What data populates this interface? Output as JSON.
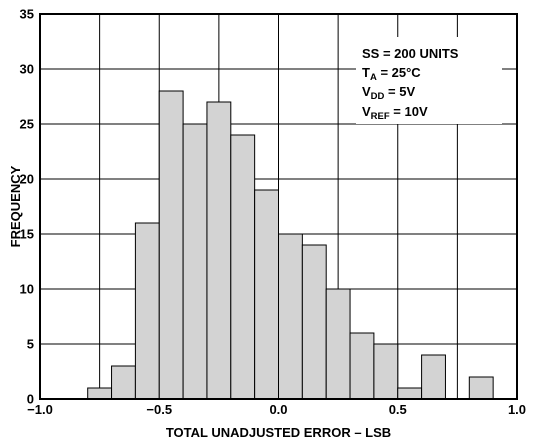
{
  "chart_data": {
    "type": "bar",
    "title": "",
    "xlabel": "TOTAL UNADJUSTED ERROR – LSB",
    "ylabel": "FREQUENCY",
    "xlim": [
      -1.0,
      1.0
    ],
    "ylim": [
      0,
      35
    ],
    "grid": true,
    "bin_width": 0.1,
    "x_ticks": [
      "−1.0",
      "−0.5",
      "0.0",
      "0.5",
      "1.0"
    ],
    "x_tick_values": [
      -1.0,
      -0.5,
      0.0,
      0.5,
      1.0
    ],
    "x_grid_values": [
      -1.0,
      -0.75,
      -0.5,
      -0.25,
      0.0,
      0.25,
      0.5,
      0.75,
      1.0
    ],
    "y_ticks": [
      "0",
      "5",
      "10",
      "15",
      "20",
      "25",
      "30",
      "35"
    ],
    "y_tick_values": [
      0,
      5,
      10,
      15,
      20,
      25,
      30,
      35
    ],
    "bins": [
      {
        "x": -0.8,
        "count": 1
      },
      {
        "x": -0.7,
        "count": 3
      },
      {
        "x": -0.6,
        "count": 16
      },
      {
        "x": -0.5,
        "count": 28
      },
      {
        "x": -0.4,
        "count": 25
      },
      {
        "x": -0.3,
        "count": 27
      },
      {
        "x": -0.2,
        "count": 24
      },
      {
        "x": -0.1,
        "count": 19
      },
      {
        "x": 0.0,
        "count": 15
      },
      {
        "x": 0.1,
        "count": 14
      },
      {
        "x": 0.2,
        "count": 10
      },
      {
        "x": 0.3,
        "count": 6
      },
      {
        "x": 0.4,
        "count": 5
      },
      {
        "x": 0.5,
        "count": 1
      },
      {
        "x": 0.6,
        "count": 4
      },
      {
        "x": 0.8,
        "count": 2
      }
    ],
    "annotations": [
      {
        "name": "annotation-sample-size",
        "parts": [
          {
            "text": "SS = 200 UNITS"
          }
        ]
      },
      {
        "name": "annotation-ta",
        "parts": [
          {
            "text": "T"
          },
          {
            "text": "A",
            "sub": true
          },
          {
            "text": " = 25°C"
          }
        ]
      },
      {
        "name": "annotation-vdd",
        "parts": [
          {
            "text": "V"
          },
          {
            "text": "DD",
            "sub": true
          },
          {
            "text": " = 5V"
          }
        ]
      },
      {
        "name": "annotation-vref",
        "parts": [
          {
            "text": "V"
          },
          {
            "text": "REF",
            "sub": true
          },
          {
            "text": " = 10V"
          }
        ]
      }
    ]
  }
}
